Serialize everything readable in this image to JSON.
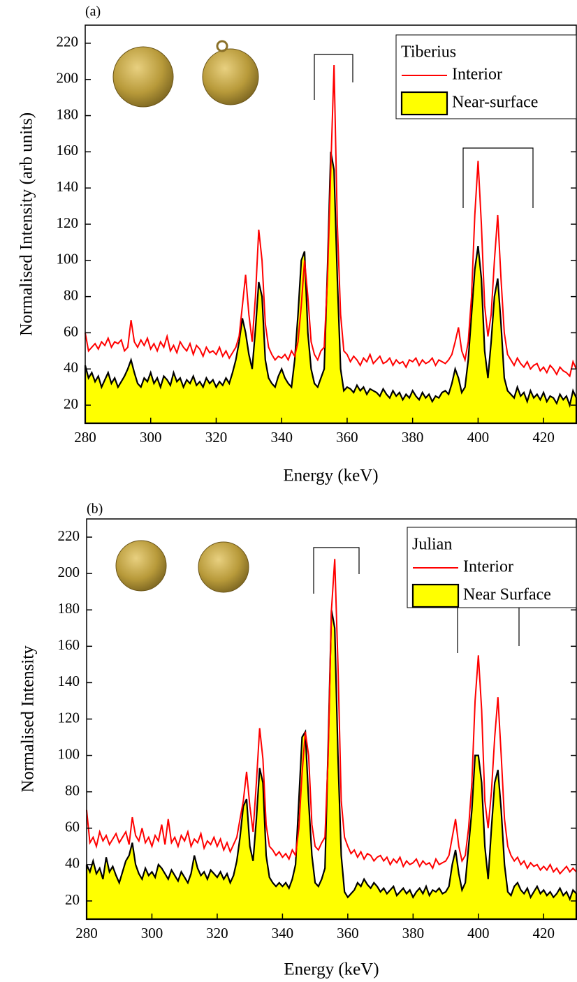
{
  "chart_data": [
    {
      "type": "line",
      "panel_label": "(a)",
      "x_label": "Energy (keV)",
      "y_label": "Normalised Intensity (arb units)",
      "legend_title": "Tiberius",
      "legend": "upper right",
      "xlim": [
        280,
        430
      ],
      "xticks": [
        280,
        300,
        320,
        340,
        360,
        380,
        400,
        420
      ],
      "ylim": [
        10,
        230
      ],
      "yticks": [
        20,
        40,
        60,
        80,
        100,
        120,
        140,
        160,
        180,
        200,
        220
      ],
      "x": [
        280,
        281,
        282,
        283,
        284,
        285,
        286,
        287,
        288,
        289,
        290,
        291,
        292,
        293,
        294,
        295,
        296,
        297,
        298,
        299,
        300,
        301,
        302,
        303,
        304,
        305,
        306,
        307,
        308,
        309,
        310,
        311,
        312,
        313,
        314,
        315,
        316,
        317,
        318,
        319,
        320,
        321,
        322,
        323,
        324,
        325,
        326,
        327,
        328,
        329,
        330,
        331,
        332,
        333,
        334,
        335,
        336,
        337,
        338,
        339,
        340,
        341,
        342,
        343,
        344,
        345,
        346,
        347,
        348,
        349,
        350,
        351,
        352,
        353,
        354,
        355,
        356,
        357,
        358,
        359,
        360,
        361,
        362,
        363,
        364,
        365,
        366,
        367,
        368,
        369,
        370,
        371,
        372,
        373,
        374,
        375,
        376,
        377,
        378,
        379,
        380,
        381,
        382,
        383,
        384,
        385,
        386,
        387,
        388,
        389,
        390,
        391,
        392,
        393,
        394,
        395,
        396,
        397,
        398,
        399,
        400,
        401,
        402,
        403,
        404,
        405,
        406,
        407,
        408,
        409,
        410,
        411,
        412,
        413,
        414,
        415,
        416,
        417,
        418,
        419,
        420,
        421,
        422,
        423,
        424,
        425,
        426,
        427,
        428,
        429,
        430
      ],
      "series": [
        {
          "name": "Interior",
          "color": "#ff0000",
          "values": [
            60,
            50,
            52,
            54,
            51,
            55,
            53,
            57,
            52,
            55,
            54,
            56,
            50,
            52,
            67,
            55,
            52,
            56,
            53,
            57,
            51,
            54,
            50,
            55,
            52,
            58,
            50,
            53,
            49,
            55,
            52,
            50,
            54,
            48,
            53,
            51,
            47,
            52,
            49,
            50,
            48,
            52,
            47,
            50,
            46,
            49,
            52,
            58,
            75,
            92,
            70,
            55,
            80,
            117,
            100,
            65,
            52,
            48,
            45,
            47,
            46,
            48,
            45,
            50,
            47,
            55,
            75,
            100,
            80,
            55,
            48,
            45,
            50,
            52,
            90,
            150,
            208,
            120,
            70,
            50,
            48,
            44,
            47,
            45,
            42,
            46,
            44,
            48,
            43,
            45,
            47,
            43,
            44,
            46,
            42,
            45,
            43,
            44,
            41,
            45,
            44,
            46,
            42,
            45,
            43,
            44,
            46,
            42,
            45,
            44,
            43,
            45,
            48,
            55,
            63,
            50,
            45,
            55,
            80,
            125,
            155,
            120,
            75,
            58,
            70,
            100,
            125,
            90,
            60,
            48,
            45,
            42,
            46,
            43,
            41,
            44,
            40,
            42,
            43,
            39,
            41,
            38,
            42,
            40,
            37,
            41,
            39,
            38,
            36,
            44,
            40
          ]
        },
        {
          "name": "Near-surface",
          "color": "#000000",
          "fill": "#ffff00",
          "values": [
            42,
            35,
            38,
            33,
            36,
            30,
            34,
            38,
            32,
            35,
            30,
            33,
            36,
            40,
            45,
            38,
            32,
            30,
            35,
            33,
            38,
            32,
            35,
            30,
            36,
            34,
            31,
            38,
            33,
            35,
            30,
            34,
            32,
            36,
            31,
            33,
            30,
            35,
            32,
            34,
            30,
            33,
            31,
            35,
            32,
            38,
            45,
            55,
            68,
            60,
            48,
            40,
            62,
            88,
            80,
            45,
            35,
            32,
            30,
            36,
            40,
            35,
            32,
            30,
            45,
            70,
            100,
            105,
            60,
            40,
            32,
            30,
            35,
            40,
            95,
            160,
            150,
            90,
            40,
            28,
            30,
            29,
            27,
            31,
            28,
            30,
            26,
            29,
            28,
            27,
            25,
            29,
            26,
            24,
            28,
            25,
            27,
            23,
            26,
            24,
            28,
            25,
            23,
            27,
            24,
            26,
            22,
            25,
            24,
            27,
            28,
            26,
            32,
            40,
            35,
            27,
            30,
            45,
            70,
            95,
            108,
            90,
            50,
            35,
            55,
            80,
            90,
            65,
            35,
            28,
            26,
            24,
            30,
            25,
            27,
            22,
            28,
            24,
            26,
            23,
            27,
            22,
            25,
            24,
            21,
            26,
            23,
            25,
            20,
            28,
            24
          ]
        }
      ]
    },
    {
      "type": "line",
      "panel_label": "(b)",
      "x_label": "Energy (keV)",
      "y_label": "Normalised Intensity",
      "legend_title": "Julian",
      "legend": "upper right",
      "xlim": [
        280,
        430
      ],
      "xticks": [
        280,
        300,
        320,
        340,
        360,
        380,
        400,
        420
      ],
      "ylim": [
        10,
        230
      ],
      "yticks": [
        20,
        40,
        60,
        80,
        100,
        120,
        140,
        160,
        180,
        200,
        220
      ],
      "x": [
        280,
        281,
        282,
        283,
        284,
        285,
        286,
        287,
        288,
        289,
        290,
        291,
        292,
        293,
        294,
        295,
        296,
        297,
        298,
        299,
        300,
        301,
        302,
        303,
        304,
        305,
        306,
        307,
        308,
        309,
        310,
        311,
        312,
        313,
        314,
        315,
        316,
        317,
        318,
        319,
        320,
        321,
        322,
        323,
        324,
        325,
        326,
        327,
        328,
        329,
        330,
        331,
        332,
        333,
        334,
        335,
        336,
        337,
        338,
        339,
        340,
        341,
        342,
        343,
        344,
        345,
        346,
        347,
        348,
        349,
        350,
        351,
        352,
        353,
        354,
        355,
        356,
        357,
        358,
        359,
        360,
        361,
        362,
        363,
        364,
        365,
        366,
        367,
        368,
        369,
        370,
        371,
        372,
        373,
        374,
        375,
        376,
        377,
        378,
        379,
        380,
        381,
        382,
        383,
        384,
        385,
        386,
        387,
        388,
        389,
        390,
        391,
        392,
        393,
        394,
        395,
        396,
        397,
        398,
        399,
        400,
        401,
        402,
        403,
        404,
        405,
        406,
        407,
        408,
        409,
        410,
        411,
        412,
        413,
        414,
        415,
        416,
        417,
        418,
        419,
        420,
        421,
        422,
        423,
        424,
        425,
        426,
        427,
        428,
        429,
        430
      ],
      "series": [
        {
          "name": "Interior",
          "color": "#ff0000",
          "values": [
            70,
            52,
            55,
            50,
            58,
            53,
            56,
            51,
            54,
            57,
            52,
            55,
            58,
            51,
            66,
            56,
            53,
            60,
            52,
            55,
            50,
            56,
            53,
            62,
            51,
            65,
            52,
            55,
            50,
            56,
            53,
            58,
            50,
            54,
            52,
            57,
            49,
            53,
            51,
            55,
            50,
            54,
            48,
            52,
            47,
            51,
            55,
            65,
            75,
            91,
            72,
            58,
            85,
            115,
            98,
            62,
            50,
            48,
            45,
            47,
            44,
            46,
            43,
            48,
            45,
            60,
            90,
            113,
            100,
            62,
            50,
            48,
            52,
            55,
            100,
            180,
            208,
            150,
            75,
            55,
            50,
            46,
            48,
            44,
            47,
            43,
            46,
            45,
            42,
            44,
            45,
            42,
            44,
            40,
            43,
            41,
            44,
            39,
            42,
            40,
            41,
            43,
            39,
            42,
            40,
            41,
            38,
            43,
            40,
            41,
            42,
            45,
            55,
            65,
            50,
            42,
            45,
            60,
            85,
            130,
            155,
            125,
            75,
            60,
            80,
            110,
            132,
            100,
            65,
            50,
            45,
            42,
            44,
            40,
            42,
            38,
            41,
            39,
            40,
            37,
            39,
            37,
            40,
            36,
            38,
            35,
            37,
            39,
            36,
            38,
            36
          ]
        },
        {
          "name": "Near Surface",
          "color": "#000000",
          "fill": "#ffff00",
          "values": [
            40,
            36,
            42,
            35,
            38,
            32,
            44,
            36,
            39,
            34,
            30,
            36,
            42,
            45,
            52,
            40,
            35,
            32,
            38,
            34,
            36,
            33,
            40,
            38,
            35,
            32,
            37,
            34,
            31,
            36,
            33,
            30,
            35,
            45,
            38,
            34,
            36,
            32,
            37,
            35,
            33,
            36,
            32,
            35,
            30,
            34,
            42,
            55,
            72,
            76,
            50,
            42,
            65,
            93,
            85,
            45,
            33,
            30,
            28,
            30,
            28,
            30,
            27,
            32,
            40,
            75,
            110,
            113,
            75,
            45,
            30,
            28,
            32,
            38,
            105,
            180,
            170,
            100,
            45,
            25,
            22,
            24,
            26,
            30,
            28,
            32,
            29,
            27,
            30,
            28,
            25,
            27,
            24,
            26,
            28,
            23,
            25,
            27,
            24,
            26,
            22,
            25,
            27,
            24,
            28,
            23,
            26,
            25,
            27,
            24,
            25,
            28,
            40,
            48,
            35,
            26,
            30,
            50,
            70,
            100,
            100,
            85,
            50,
            32,
            60,
            85,
            92,
            70,
            40,
            25,
            23,
            28,
            30,
            26,
            24,
            27,
            22,
            25,
            28,
            24,
            26,
            23,
            25,
            22,
            24,
            27,
            23,
            25,
            21,
            26,
            24
          ]
        }
      ]
    }
  ]
}
